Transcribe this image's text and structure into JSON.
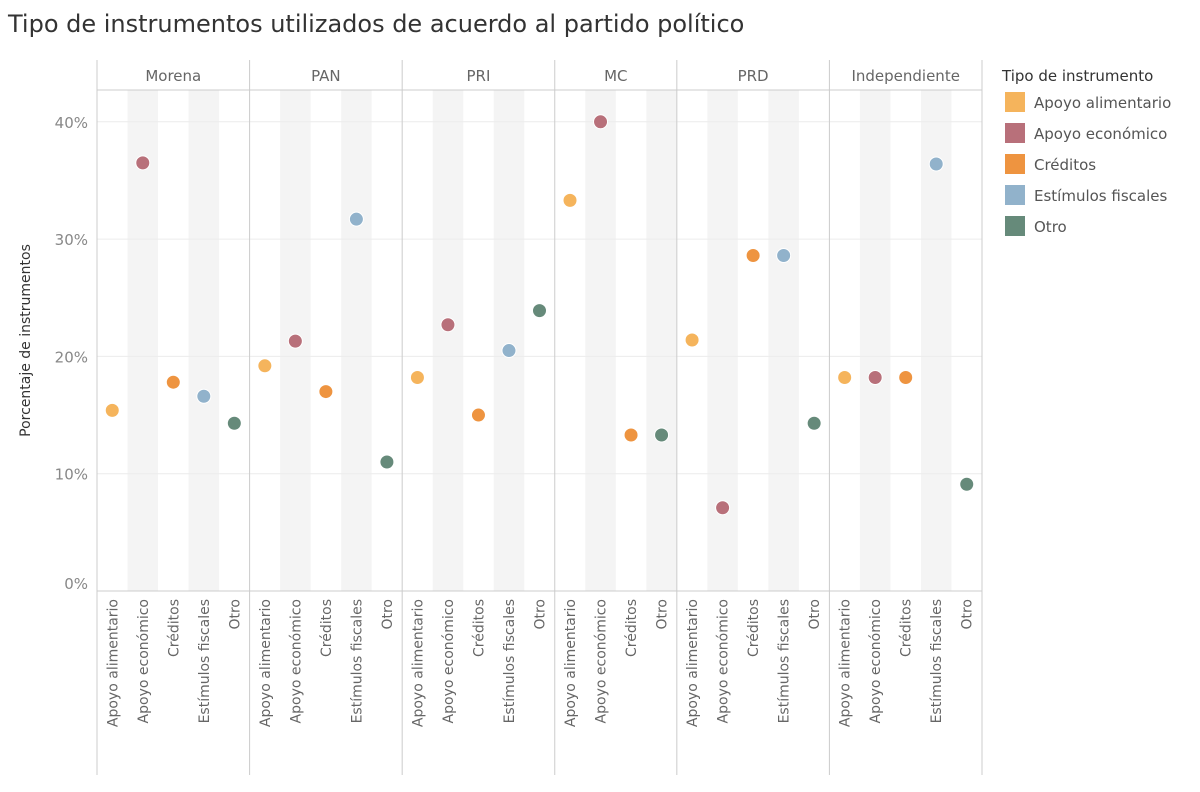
{
  "chart_data": {
    "type": "scatter",
    "title": "Tipo de instrumentos utilizados de acuerdo al partido político",
    "ylabel": "Porcentaje de instrumentos",
    "xlabel": "",
    "ylim": [
      0,
      42.5
    ],
    "yticks": [
      0,
      10,
      20,
      30,
      40
    ],
    "ytick_labels": [
      "0%",
      "10%",
      "20%",
      "30%",
      "40%"
    ],
    "grid": true,
    "legend": {
      "title": "Tipo de instrumento",
      "placement": "right",
      "entries": [
        "Apoyo alimentario",
        "Apoyo económico",
        "Créditos",
        "Estímulos fiscales",
        "Otro"
      ]
    },
    "colors": {
      "Apoyo alimentario": "#f5b45c",
      "Apoyo económico": "#b8707a",
      "Créditos": "#ee9440",
      "Estímulos fiscales": "#91b2cb",
      "Otro": "#668a7a"
    },
    "panels": [
      {
        "name": "Morena",
        "categories": [
          "Apoyo alimentario",
          "Apoyo económico",
          "Créditos",
          "Estímulos fiscales",
          "Otro"
        ],
        "values": [
          15.4,
          36.5,
          17.8,
          16.6,
          14.3
        ]
      },
      {
        "name": "PAN",
        "categories": [
          "Apoyo alimentario",
          "Apoyo económico",
          "Créditos",
          "Estímulos fiscales",
          "Otro"
        ],
        "values": [
          19.2,
          21.3,
          17.0,
          31.7,
          11.0
        ]
      },
      {
        "name": "PRI",
        "categories": [
          "Apoyo alimentario",
          "Apoyo económico",
          "Créditos",
          "Estímulos fiscales",
          "Otro"
        ],
        "values": [
          18.2,
          22.7,
          15.0,
          20.5,
          23.9
        ]
      },
      {
        "name": "MC",
        "categories": [
          "Apoyo alimentario",
          "Apoyo económico",
          "Créditos",
          "Otro"
        ],
        "values": [
          33.3,
          40.0,
          13.3,
          13.3
        ]
      },
      {
        "name": "PRD",
        "categories": [
          "Apoyo alimentario",
          "Apoyo económico",
          "Créditos",
          "Estímulos fiscales",
          "Otro"
        ],
        "values": [
          21.4,
          7.1,
          28.6,
          28.6,
          14.3
        ]
      },
      {
        "name": "Independiente",
        "categories": [
          "Apoyo alimentario",
          "Apoyo económico",
          "Créditos",
          "Estímulos fiscales",
          "Otro"
        ],
        "values": [
          18.2,
          18.2,
          18.2,
          36.4,
          9.1
        ]
      }
    ]
  }
}
